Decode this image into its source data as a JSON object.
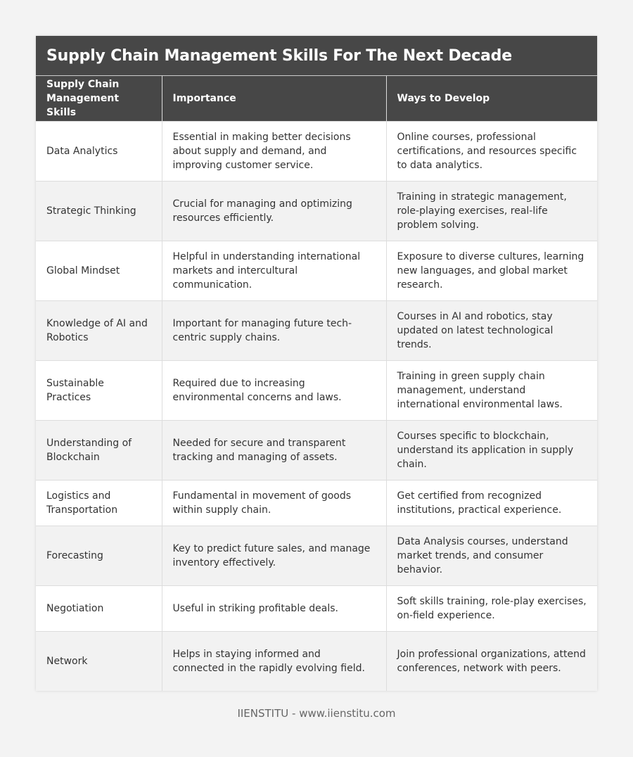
{
  "title": "Supply Chain Management Skills For The Next Decade",
  "columns": [
    "Supply Chain Management Skills",
    "Importance",
    "Ways to Develop"
  ],
  "rows": [
    [
      "Data Analytics",
      "Essential in making better decisions about supply and demand, and improving customer service.",
      "Online courses, professional certifications, and resources specific to data analytics."
    ],
    [
      "Strategic Thinking",
      "Crucial for managing and optimizing resources efficiently.",
      "Training in strategic management, role-playing exercises, real-life problem solving."
    ],
    [
      "Global Mindset",
      "Helpful in understanding international markets and intercultural communication.",
      "Exposure to diverse cultures, learning new languages, and global market research."
    ],
    [
      "Knowledge of AI and Robotics",
      "Important for managing future tech-centric supply chains.",
      "Courses in AI and robotics, stay updated on latest technological trends."
    ],
    [
      "Sustainable Practices",
      "Required due to increasing environmental concerns and laws.",
      "Training in green supply chain management, understand international environmental laws."
    ],
    [
      "Understanding of Blockchain",
      "Needed for secure and transparent tracking and managing of assets.",
      "Courses specific to blockchain, understand its application in supply chain."
    ],
    [
      "Logistics and Transportation",
      "Fundamental in movement of goods within supply chain.",
      "Get certified from recognized institutions, practical experience."
    ],
    [
      "Forecasting",
      "Key to predict future sales, and manage inventory effectively.",
      "Data Analysis courses, understand market trends, and consumer behavior."
    ],
    [
      "Negotiation",
      "Useful in striking profitable deals.",
      "Soft skills training, role-play exercises, on-field experience."
    ],
    [
      "Network",
      "Helps in staying informed and connected in the rapidly evolving field.",
      "Join professional organizations, attend conferences, network with peers."
    ]
  ],
  "footer": "IIENSTITU - www.iienstitu.com"
}
